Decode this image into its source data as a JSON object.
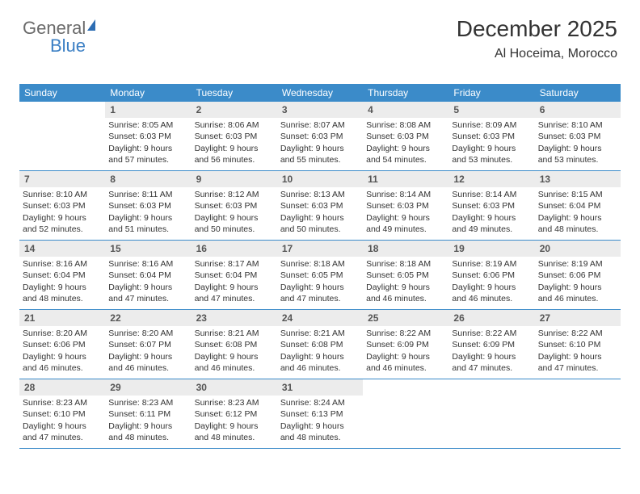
{
  "logo": {
    "part1": "General",
    "part2": "Blue"
  },
  "header": {
    "title": "December 2025",
    "location": "Al Hoceima, Morocco"
  },
  "colors": {
    "header_bg": "#3b8bc9",
    "header_text": "#ffffff",
    "daynum_bg": "#ececec",
    "border": "#3b8bc9",
    "text": "#333333"
  },
  "calendar": {
    "day_headers": [
      "Sunday",
      "Monday",
      "Tuesday",
      "Wednesday",
      "Thursday",
      "Friday",
      "Saturday"
    ],
    "weeks": [
      [
        {
          "n": "",
          "sr": "",
          "ss": "",
          "dl": ""
        },
        {
          "n": "1",
          "sr": "Sunrise: 8:05 AM",
          "ss": "Sunset: 6:03 PM",
          "dl": "Daylight: 9 hours and 57 minutes."
        },
        {
          "n": "2",
          "sr": "Sunrise: 8:06 AM",
          "ss": "Sunset: 6:03 PM",
          "dl": "Daylight: 9 hours and 56 minutes."
        },
        {
          "n": "3",
          "sr": "Sunrise: 8:07 AM",
          "ss": "Sunset: 6:03 PM",
          "dl": "Daylight: 9 hours and 55 minutes."
        },
        {
          "n": "4",
          "sr": "Sunrise: 8:08 AM",
          "ss": "Sunset: 6:03 PM",
          "dl": "Daylight: 9 hours and 54 minutes."
        },
        {
          "n": "5",
          "sr": "Sunrise: 8:09 AM",
          "ss": "Sunset: 6:03 PM",
          "dl": "Daylight: 9 hours and 53 minutes."
        },
        {
          "n": "6",
          "sr": "Sunrise: 8:10 AM",
          "ss": "Sunset: 6:03 PM",
          "dl": "Daylight: 9 hours and 53 minutes."
        }
      ],
      [
        {
          "n": "7",
          "sr": "Sunrise: 8:10 AM",
          "ss": "Sunset: 6:03 PM",
          "dl": "Daylight: 9 hours and 52 minutes."
        },
        {
          "n": "8",
          "sr": "Sunrise: 8:11 AM",
          "ss": "Sunset: 6:03 PM",
          "dl": "Daylight: 9 hours and 51 minutes."
        },
        {
          "n": "9",
          "sr": "Sunrise: 8:12 AM",
          "ss": "Sunset: 6:03 PM",
          "dl": "Daylight: 9 hours and 50 minutes."
        },
        {
          "n": "10",
          "sr": "Sunrise: 8:13 AM",
          "ss": "Sunset: 6:03 PM",
          "dl": "Daylight: 9 hours and 50 minutes."
        },
        {
          "n": "11",
          "sr": "Sunrise: 8:14 AM",
          "ss": "Sunset: 6:03 PM",
          "dl": "Daylight: 9 hours and 49 minutes."
        },
        {
          "n": "12",
          "sr": "Sunrise: 8:14 AM",
          "ss": "Sunset: 6:03 PM",
          "dl": "Daylight: 9 hours and 49 minutes."
        },
        {
          "n": "13",
          "sr": "Sunrise: 8:15 AM",
          "ss": "Sunset: 6:04 PM",
          "dl": "Daylight: 9 hours and 48 minutes."
        }
      ],
      [
        {
          "n": "14",
          "sr": "Sunrise: 8:16 AM",
          "ss": "Sunset: 6:04 PM",
          "dl": "Daylight: 9 hours and 48 minutes."
        },
        {
          "n": "15",
          "sr": "Sunrise: 8:16 AM",
          "ss": "Sunset: 6:04 PM",
          "dl": "Daylight: 9 hours and 47 minutes."
        },
        {
          "n": "16",
          "sr": "Sunrise: 8:17 AM",
          "ss": "Sunset: 6:04 PM",
          "dl": "Daylight: 9 hours and 47 minutes."
        },
        {
          "n": "17",
          "sr": "Sunrise: 8:18 AM",
          "ss": "Sunset: 6:05 PM",
          "dl": "Daylight: 9 hours and 47 minutes."
        },
        {
          "n": "18",
          "sr": "Sunrise: 8:18 AM",
          "ss": "Sunset: 6:05 PM",
          "dl": "Daylight: 9 hours and 46 minutes."
        },
        {
          "n": "19",
          "sr": "Sunrise: 8:19 AM",
          "ss": "Sunset: 6:06 PM",
          "dl": "Daylight: 9 hours and 46 minutes."
        },
        {
          "n": "20",
          "sr": "Sunrise: 8:19 AM",
          "ss": "Sunset: 6:06 PM",
          "dl": "Daylight: 9 hours and 46 minutes."
        }
      ],
      [
        {
          "n": "21",
          "sr": "Sunrise: 8:20 AM",
          "ss": "Sunset: 6:06 PM",
          "dl": "Daylight: 9 hours and 46 minutes."
        },
        {
          "n": "22",
          "sr": "Sunrise: 8:20 AM",
          "ss": "Sunset: 6:07 PM",
          "dl": "Daylight: 9 hours and 46 minutes."
        },
        {
          "n": "23",
          "sr": "Sunrise: 8:21 AM",
          "ss": "Sunset: 6:08 PM",
          "dl": "Daylight: 9 hours and 46 minutes."
        },
        {
          "n": "24",
          "sr": "Sunrise: 8:21 AM",
          "ss": "Sunset: 6:08 PM",
          "dl": "Daylight: 9 hours and 46 minutes."
        },
        {
          "n": "25",
          "sr": "Sunrise: 8:22 AM",
          "ss": "Sunset: 6:09 PM",
          "dl": "Daylight: 9 hours and 46 minutes."
        },
        {
          "n": "26",
          "sr": "Sunrise: 8:22 AM",
          "ss": "Sunset: 6:09 PM",
          "dl": "Daylight: 9 hours and 47 minutes."
        },
        {
          "n": "27",
          "sr": "Sunrise: 8:22 AM",
          "ss": "Sunset: 6:10 PM",
          "dl": "Daylight: 9 hours and 47 minutes."
        }
      ],
      [
        {
          "n": "28",
          "sr": "Sunrise: 8:23 AM",
          "ss": "Sunset: 6:10 PM",
          "dl": "Daylight: 9 hours and 47 minutes."
        },
        {
          "n": "29",
          "sr": "Sunrise: 8:23 AM",
          "ss": "Sunset: 6:11 PM",
          "dl": "Daylight: 9 hours and 48 minutes."
        },
        {
          "n": "30",
          "sr": "Sunrise: 8:23 AM",
          "ss": "Sunset: 6:12 PM",
          "dl": "Daylight: 9 hours and 48 minutes."
        },
        {
          "n": "31",
          "sr": "Sunrise: 8:24 AM",
          "ss": "Sunset: 6:13 PM",
          "dl": "Daylight: 9 hours and 48 minutes."
        },
        {
          "n": "",
          "sr": "",
          "ss": "",
          "dl": ""
        },
        {
          "n": "",
          "sr": "",
          "ss": "",
          "dl": ""
        },
        {
          "n": "",
          "sr": "",
          "ss": "",
          "dl": ""
        }
      ]
    ]
  }
}
